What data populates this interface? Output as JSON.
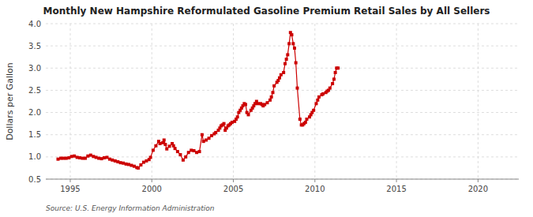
{
  "chart_data": {
    "type": "line",
    "title": "Monthly New Hampshire Reformulated Gasoline Premium Retail Sales by All Sellers",
    "ylabel": "Dollars per Gallon",
    "annotations": [
      "Source: U.S. Energy Information Administration"
    ],
    "color": "#CC0000",
    "marker": "square",
    "line_style": "solid",
    "grid": true,
    "xlim": [
      1993.5,
      2022.5
    ],
    "ylim": [
      0.5,
      4.0
    ],
    "xticks": [
      1995,
      2000,
      2005,
      2010,
      2015,
      2020
    ],
    "yticks": [
      0.5,
      {
        "value": 1.0,
        "label": "1.0"
      },
      1.5,
      {
        "value": 2.0,
        "label": "2.0"
      },
      2.5,
      {
        "value": 3.0,
        "label": "3.0"
      },
      3.5,
      {
        "value": 4.0,
        "label": "4.0"
      }
    ],
    "x": [
      1994.25,
      1994.42,
      1994.58,
      1994.75,
      1994.92,
      1995.08,
      1995.25,
      1995.42,
      1995.58,
      1995.75,
      1995.92,
      1996.08,
      1996.25,
      1996.42,
      1996.58,
      1996.75,
      1996.92,
      1997.08,
      1997.25,
      1997.42,
      1997.58,
      1997.75,
      1997.92,
      1998.08,
      1998.25,
      1998.42,
      1998.58,
      1998.75,
      1998.92,
      1999.08,
      1999.17,
      1999.33,
      1999.5,
      1999.67,
      1999.83,
      1999.92,
      2000.08,
      2000.25,
      2000.42,
      2000.5,
      2000.67,
      2000.75,
      2000.83,
      2000.92,
      2001.08,
      2001.25,
      2001.33,
      2001.42,
      2001.58,
      2001.75,
      2001.92,
      2002.08,
      2002.25,
      2002.42,
      2002.58,
      2002.75,
      2002.92,
      2003.08,
      2003.17,
      2003.33,
      2003.5,
      2003.67,
      2003.83,
      2003.92,
      2004.08,
      2004.17,
      2004.25,
      2004.33,
      2004.42,
      2004.5,
      2004.58,
      2004.67,
      2004.75,
      2004.83,
      2004.92,
      2005.08,
      2005.17,
      2005.25,
      2005.33,
      2005.42,
      2005.5,
      2005.58,
      2005.67,
      2005.75,
      2005.83,
      2005.92,
      2006.08,
      2006.17,
      2006.25,
      2006.33,
      2006.42,
      2006.5,
      2006.67,
      2006.75,
      2006.83,
      2006.92,
      2007.08,
      2007.25,
      2007.33,
      2007.42,
      2007.5,
      2007.67,
      2007.75,
      2007.83,
      2007.92,
      2008.08,
      2008.17,
      2008.25,
      2008.33,
      2008.42,
      2008.5,
      2008.58,
      2008.67,
      2008.75,
      2008.83,
      2008.92,
      2009.08,
      2009.17,
      2009.25,
      2009.33,
      2009.42,
      2009.5,
      2009.67,
      2009.75,
      2009.83,
      2009.92,
      2010.08,
      2010.17,
      2010.25,
      2010.42,
      2010.5,
      2010.67,
      2010.75,
      2010.83,
      2010.92,
      2011.08,
      2011.17,
      2011.25,
      2011.33,
      2011.42
    ],
    "values": [
      0.95,
      0.97,
      0.97,
      0.97,
      0.98,
      1.01,
      1.02,
      0.99,
      0.98,
      0.97,
      0.97,
      1.02,
      1.04,
      1.01,
      0.99,
      0.97,
      0.96,
      0.98,
      0.99,
      0.95,
      0.93,
      0.91,
      0.89,
      0.87,
      0.86,
      0.84,
      0.83,
      0.81,
      0.79,
      0.76,
      0.75,
      0.82,
      0.88,
      0.91,
      0.94,
      0.99,
      1.15,
      1.25,
      1.35,
      1.3,
      1.32,
      1.38,
      1.28,
      1.18,
      1.24,
      1.3,
      1.25,
      1.19,
      1.12,
      1.05,
      0.93,
      1.0,
      1.1,
      1.15,
      1.14,
      1.1,
      1.12,
      1.5,
      1.35,
      1.38,
      1.42,
      1.48,
      1.52,
      1.55,
      1.6,
      1.65,
      1.7,
      1.72,
      1.75,
      1.6,
      1.65,
      1.7,
      1.72,
      1.75,
      1.78,
      1.8,
      1.85,
      1.9,
      2.0,
      2.05,
      2.1,
      2.15,
      2.2,
      2.18,
      2.0,
      1.95,
      2.05,
      2.1,
      2.15,
      2.2,
      2.25,
      2.2,
      2.2,
      2.18,
      2.15,
      2.18,
      2.22,
      2.28,
      2.35,
      2.45,
      2.6,
      2.68,
      2.72,
      2.78,
      2.85,
      2.9,
      3.1,
      3.2,
      3.3,
      3.55,
      3.8,
      3.75,
      3.55,
      3.45,
      3.12,
      2.55,
      1.85,
      1.72,
      1.72,
      1.75,
      1.78,
      1.85,
      1.9,
      1.95,
      2.0,
      2.05,
      2.2,
      2.28,
      2.35,
      2.4,
      2.42,
      2.45,
      2.48,
      2.5,
      2.55,
      2.65,
      2.75,
      2.9,
      3.0,
      3.0
    ]
  }
}
